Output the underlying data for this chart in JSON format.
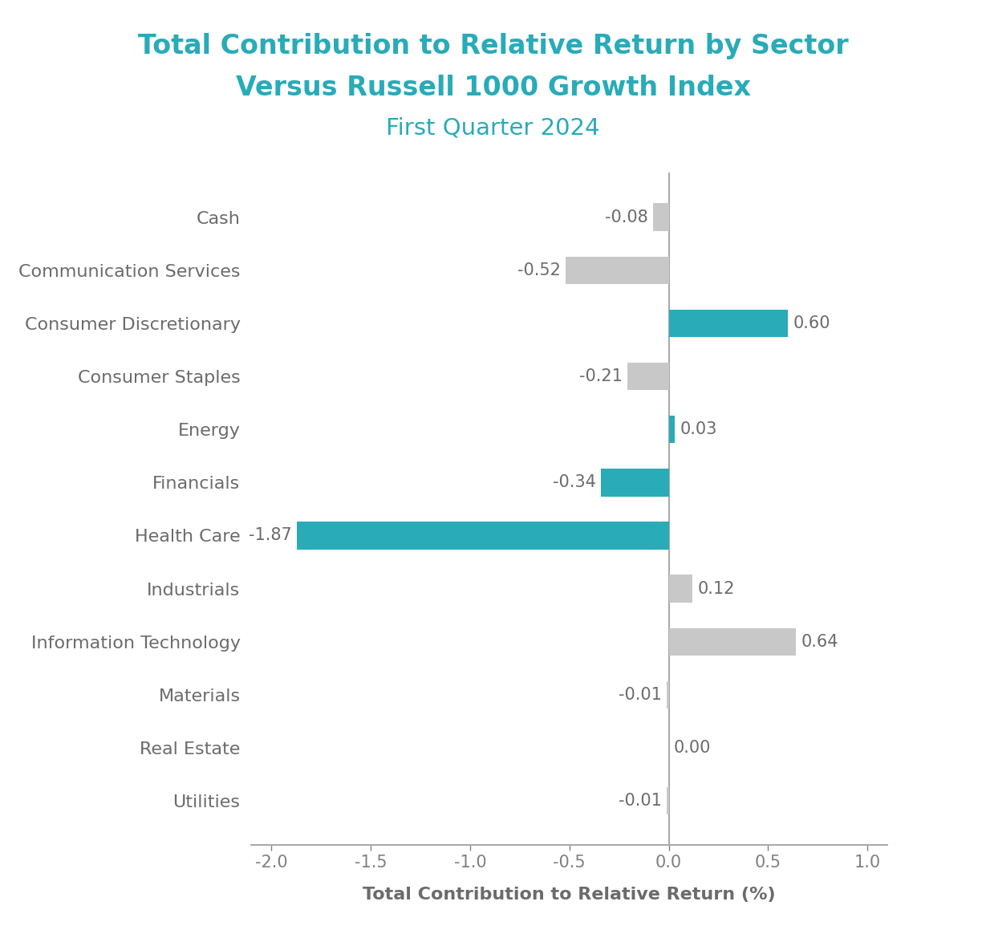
{
  "title_line1": "Total Contribution to Relative Return by Sector",
  "title_line2": "Versus Russell 1000 Growth Index",
  "subtitle": "First Quarter 2024",
  "xlabel": "Total Contribution to Relative Return (%)",
  "categories": [
    "Cash",
    "Communication Services",
    "Consumer Discretionary",
    "Consumer Staples",
    "Energy",
    "Financials",
    "Health Care",
    "Industrials",
    "Information Technology",
    "Materials",
    "Real Estate",
    "Utilities"
  ],
  "values": [
    -0.08,
    -0.52,
    0.6,
    -0.21,
    0.03,
    -0.34,
    -1.87,
    0.12,
    0.64,
    -0.01,
    0.0,
    -0.01
  ],
  "teal_color": "#29ABB8",
  "bar_color_gray": "#C8C8C8",
  "title_color": "#29ABB8",
  "subtitle_color": "#29ABB8",
  "label_color": "#6B6B6B",
  "xlabel_color": "#6B6B6B",
  "tick_color": "#808080",
  "axis_color": "#AAAAAA",
  "xlim": [
    -2.1,
    1.1
  ],
  "xticks": [
    -2.0,
    -1.5,
    -1.0,
    -0.5,
    0.0,
    0.5,
    1.0
  ],
  "title_fontsize": 24,
  "subtitle_fontsize": 21,
  "label_fontsize": 16,
  "xlabel_fontsize": 16,
  "value_fontsize": 15,
  "tick_fontsize": 15,
  "bar_height": 0.52,
  "teal_indices": [
    2,
    4,
    5,
    6
  ]
}
